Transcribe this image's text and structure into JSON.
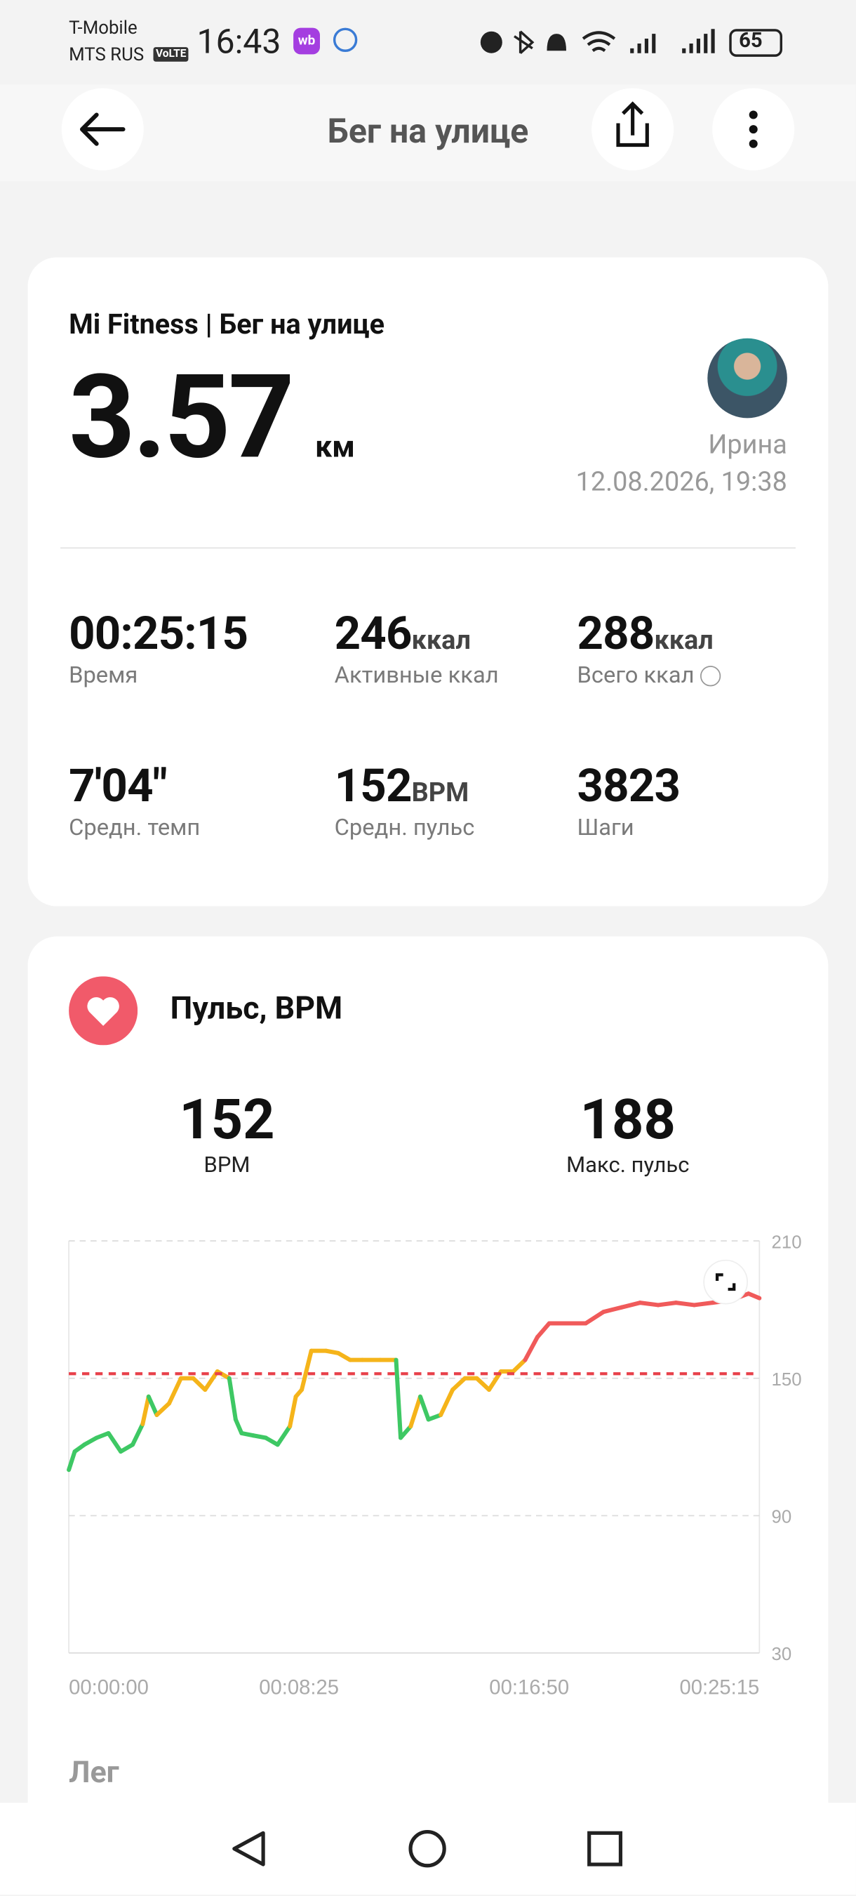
{
  "status_bar": {
    "carrier1": "T-Mobile",
    "carrier2": "MTS RUS",
    "volte": "VoLTE",
    "time": "16:43",
    "app_badge": "wb",
    "battery": "65"
  },
  "header": {
    "title": "Бег на улице"
  },
  "summary": {
    "source": "Mi Fitness | Бег на улице",
    "distance": "3.57",
    "unit": "км",
    "user": "Ирина",
    "date": "12.08.2026, 19:38"
  },
  "stats": [
    {
      "value": "00:25:15",
      "label": "Время"
    },
    {
      "value": "246",
      "unit": "ккал",
      "label": "Активные ккал"
    },
    {
      "value": "288",
      "unit": "ккал",
      "label": "Всего ккал"
    },
    {
      "value": "7'04\"",
      "label": "Средн. темп"
    },
    {
      "value": "152",
      "unit": "BPM",
      "label": "Средн. пульс"
    },
    {
      "value": "3823",
      "label": "Шаги"
    }
  ],
  "chart_data": {
    "type": "line",
    "title": "Пульс, BPM",
    "stats": [
      {
        "value": 152,
        "label": "BPM"
      },
      {
        "value": 188,
        "label": "Макс. пульс"
      }
    ],
    "x": [
      0,
      13,
      34,
      61,
      87,
      114,
      140,
      162,
      175,
      193,
      220,
      246,
      273,
      299,
      326,
      352,
      366,
      379,
      405,
      432,
      458,
      485,
      498,
      511,
      532,
      564,
      591,
      617,
      644,
      683,
      718,
      728,
      750,
      771,
      789,
      816,
      842,
      869,
      895,
      922,
      948,
      975,
      1001,
      1028,
      1054,
      1094,
      1134,
      1173,
      1213,
      1253,
      1293,
      1332,
      1372,
      1412,
      1451,
      1491,
      1515
    ],
    "values": [
      110,
      118,
      121,
      124,
      126,
      118,
      121,
      130,
      142,
      134,
      139,
      150,
      150,
      145,
      153,
      150,
      132,
      126,
      125,
      124,
      121,
      129,
      142,
      145,
      162,
      162,
      161,
      158,
      158,
      158,
      158,
      124,
      129,
      142,
      132,
      134,
      145,
      150,
      150,
      145,
      153,
      153,
      158,
      168,
      174,
      174,
      174,
      179,
      181,
      183,
      182,
      183,
      182,
      183,
      184,
      187,
      185
    ],
    "colors": [
      "#3ec864",
      "#3ec864",
      "#3ec864",
      "#3ec864",
      "#3ec864",
      "#3ec864",
      "#3ec864",
      "#3ec864",
      "#f5b41a",
      "#3ec864",
      "#f5b41a",
      "#f5b41a",
      "#f5b41a",
      "#f5b41a",
      "#f5b41a",
      "#f5b41a",
      "#3ec864",
      "#3ec864",
      "#3ec864",
      "#3ec864",
      "#3ec864",
      "#3ec864",
      "#f5b41a",
      "#f5b41a",
      "#f5b41a",
      "#f5b41a",
      "#f5b41a",
      "#f5b41a",
      "#f5b41a",
      "#f5b41a",
      "#f5b41a",
      "#3ec864",
      "#3ec864",
      "#f5b41a",
      "#3ec864",
      "#3ec864",
      "#f5b41a",
      "#f5b41a",
      "#f5b41a",
      "#f5b41a",
      "#f5b41a",
      "#f5b41a",
      "#f5b41a",
      "#f05a5a",
      "#f05a5a",
      "#f05a5a",
      "#f05a5a",
      "#f05a5a",
      "#f05a5a",
      "#f05a5a",
      "#f05a5a",
      "#f05a5a",
      "#f05a5a",
      "#f05a5a",
      "#f05a5a",
      "#f05a5a",
      "#f05a5a"
    ],
    "average_color": "#e8404a",
    "xlim": [
      0,
      1515
    ],
    "ylim": [
      30,
      210
    ],
    "xticks": [
      {
        "value": 0,
        "label": "00:00:00"
      },
      {
        "value": 505,
        "label": "00:08:25"
      },
      {
        "value": 1010,
        "label": "00:16:50"
      },
      {
        "value": 1515,
        "label": "00:25:15"
      }
    ],
    "yticks": [
      30,
      90,
      150,
      210
    ],
    "grid": true
  },
  "next_section": {
    "title": "Лег"
  }
}
